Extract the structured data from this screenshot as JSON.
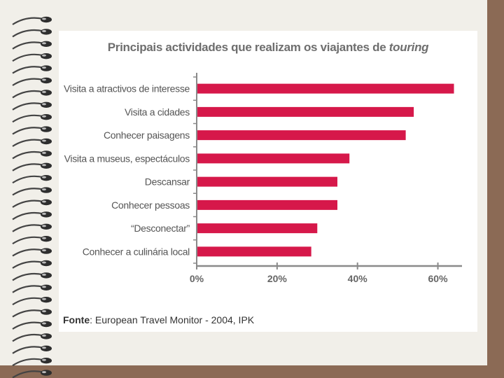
{
  "colors": {
    "bar": "#d6184a",
    "axis": "#8a8a8a",
    "text": "#555555",
    "background": "#8b6a55",
    "panel": "#ffffff"
  },
  "decoration": {
    "binding": "spiral-binding-icon"
  },
  "title": {
    "main": "Principais actividades que realizam os viajantes de",
    "emphasis": "touring"
  },
  "source": {
    "label": "Fonte",
    "text": ": European Travel Monitor - 2004, IPK"
  },
  "chart_data": {
    "type": "bar",
    "orientation": "horizontal",
    "title": "Principais actividades que realizam os viajantes de touring",
    "categories": [
      "Visita a atractivos de interesse",
      "Visita a cidades",
      "Conhecer paisagens",
      "Visita a museus, espectáculos",
      "Descansar",
      "Conhecer pessoas",
      "“Desconectar”",
      "Conhecer a culinária local"
    ],
    "values": [
      64,
      54,
      52,
      38,
      35,
      35,
      30,
      28.5
    ],
    "xlim": [
      0,
      66
    ],
    "xticks": [
      0,
      20,
      40,
      60
    ],
    "xtick_labels": [
      "0%",
      "20%",
      "40%",
      "60%"
    ],
    "grid": false,
    "legend": "none"
  }
}
